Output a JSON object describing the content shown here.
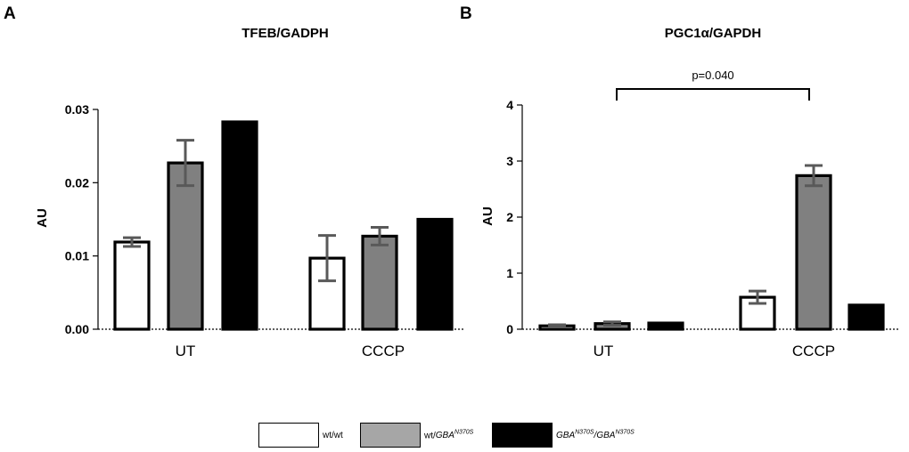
{
  "colors": {
    "wt_wt": "#ffffff",
    "wt_gba": "#808080",
    "gba_gba": "#000000",
    "errorbar": "#595959",
    "legend_gray": "#a6a6a6"
  },
  "legend": {
    "wt_wt": "wt/wt",
    "wt_gba_prefix": "wt/",
    "gba": "GBA",
    "sup": "N370S",
    "slash": "/"
  },
  "chart_data": [
    {
      "panel": "A",
      "type": "bar",
      "title": "TFEB/GADPH",
      "ylabel": "AU",
      "xlabel": "",
      "ylim": [
        0,
        0.03
      ],
      "yticks": [
        0.0,
        0.01,
        0.02,
        0.03
      ],
      "ytick_labels": [
        "0.00",
        "0.01",
        "0.02",
        "0.03"
      ],
      "categories": [
        "UT",
        "CCCP"
      ],
      "series": [
        {
          "name": "wt/wt",
          "values": [
            0.0119,
            0.0097
          ],
          "errors": [
            0.0006,
            0.0031
          ]
        },
        {
          "name": "wt/GBA N370S",
          "values": [
            0.0227,
            0.0127
          ],
          "errors": [
            0.0031,
            0.0012
          ]
        },
        {
          "name": "GBA N370S/GBA N370S",
          "values": [
            0.0283,
            0.015
          ],
          "errors": [
            null,
            null
          ]
        }
      ]
    },
    {
      "panel": "B",
      "type": "bar",
      "title": "PGC1α/GAPDH",
      "ylabel": "AU",
      "xlabel": "",
      "ylim": [
        0,
        4
      ],
      "yticks": [
        0,
        1,
        2,
        3,
        4
      ],
      "ytick_labels": [
        "0",
        "1",
        "2",
        "3",
        "4"
      ],
      "categories": [
        "UT",
        "CCCP"
      ],
      "series": [
        {
          "name": "wt/wt",
          "values": [
            0.06,
            0.57
          ],
          "errors": [
            0.02,
            0.11
          ]
        },
        {
          "name": "wt/GBA N370S",
          "values": [
            0.1,
            2.74
          ],
          "errors": [
            0.03,
            0.18
          ]
        },
        {
          "name": "GBA N370S/GBA N370S",
          "values": [
            0.11,
            0.43
          ],
          "errors": [
            null,
            null
          ]
        }
      ],
      "annotation": {
        "text": "p=0.040",
        "from": "UT",
        "to": "CCCP"
      }
    }
  ]
}
